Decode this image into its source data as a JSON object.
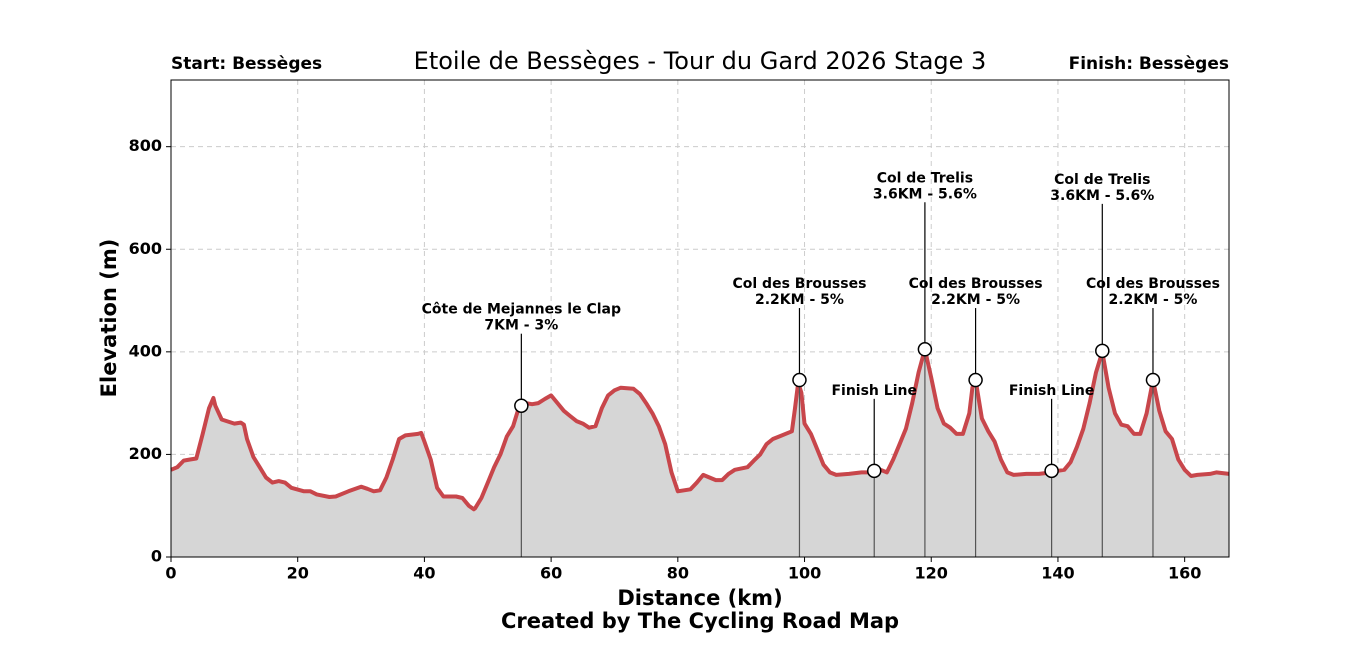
{
  "chart_data": {
    "type": "area",
    "title": "Etoile de Bessèges - Tour du Gard 2026 Stage 3",
    "start_label": "Start: Bessèges",
    "finish_label": "Finish: Bessèges",
    "xlabel": "Distance (km)",
    "ylabel": "Elevation (m)",
    "credit": "Created by The Cycling Road Map",
    "color": "#c8464b",
    "fill_color": "#d6d6d6",
    "grid": true,
    "xlim": [
      0,
      167
    ],
    "ylim": [
      0,
      930
    ],
    "xticks": [
      0,
      20,
      40,
      60,
      80,
      100,
      120,
      140,
      160
    ],
    "yticks": [
      0,
      200,
      400,
      600,
      800
    ],
    "x": [
      0,
      1,
      2,
      3,
      4,
      5,
      6,
      6.7,
      7,
      8,
      10,
      11,
      11.5,
      12,
      13,
      14,
      15,
      16,
      17,
      18,
      19,
      21,
      22,
      23,
      25,
      26,
      28,
      30,
      31,
      32,
      33,
      34,
      35,
      36,
      37,
      39,
      39.5,
      40,
      41,
      42,
      43,
      45,
      46,
      47,
      47.8,
      48,
      49,
      50,
      51,
      52,
      53,
      54,
      55,
      56,
      57,
      58,
      59,
      60,
      61,
      62,
      63,
      64,
      65,
      66,
      67,
      68,
      69,
      70,
      71,
      73,
      74,
      75,
      76,
      77,
      78,
      79,
      80,
      82,
      83,
      84,
      85,
      86,
      87,
      88,
      89,
      91,
      92,
      93,
      94,
      95,
      96,
      98,
      98.5,
      99,
      99.5,
      100,
      101,
      102,
      103,
      104,
      105,
      107,
      109,
      110,
      111,
      112,
      113,
      114,
      115,
      116,
      117,
      118,
      119,
      120,
      121,
      122,
      123,
      124,
      125,
      126,
      126.5,
      127,
      128,
      129,
      130,
      131,
      132,
      133,
      135,
      137,
      139,
      140,
      141,
      142,
      143,
      144,
      145,
      146,
      147,
      148,
      149,
      150,
      151,
      152,
      153,
      154,
      155,
      156,
      157,
      158,
      159,
      160,
      161,
      162,
      164,
      165,
      167
    ],
    "values": [
      170,
      175,
      188,
      190,
      192,
      240,
      290,
      310,
      295,
      268,
      260,
      262,
      258,
      230,
      195,
      175,
      155,
      145,
      148,
      145,
      135,
      128,
      128,
      122,
      117,
      118,
      128,
      137,
      133,
      128,
      130,
      155,
      190,
      230,
      237,
      240,
      242,
      225,
      190,
      135,
      118,
      118,
      115,
      100,
      93,
      95,
      115,
      145,
      175,
      200,
      235,
      255,
      295,
      300,
      298,
      300,
      308,
      315,
      300,
      285,
      275,
      265,
      260,
      252,
      255,
      290,
      315,
      325,
      330,
      328,
      318,
      300,
      280,
      255,
      220,
      165,
      128,
      132,
      145,
      160,
      155,
      150,
      150,
      162,
      170,
      175,
      188,
      200,
      220,
      230,
      235,
      245,
      290,
      340,
      320,
      260,
      240,
      210,
      180,
      165,
      160,
      162,
      165,
      165,
      168,
      170,
      165,
      190,
      220,
      250,
      300,
      360,
      405,
      350,
      290,
      260,
      252,
      240,
      240,
      280,
      330,
      345,
      270,
      245,
      225,
      190,
      165,
      160,
      162,
      162,
      165,
      168,
      170,
      185,
      215,
      250,
      300,
      360,
      400,
      330,
      280,
      258,
      255,
      240,
      240,
      280,
      345,
      285,
      245,
      230,
      190,
      170,
      158,
      160,
      162,
      165,
      162
    ],
    "annotations": [
      {
        "lines": [
          "Côte  de Mejannes le Clap",
          "7KM - 3%"
        ],
        "x": 55.3,
        "y": 295
      },
      {
        "lines": [
          "Col des Brousses",
          "2.2KM - 5%"
        ],
        "x": 99.2,
        "y": 345
      },
      {
        "lines": [
          "Finish Line"
        ],
        "x": 111,
        "y": 168
      },
      {
        "lines": [
          "Col de Trelis",
          "3.6KM - 5.6%"
        ],
        "x": 119,
        "y": 405
      },
      {
        "lines": [
          "Col des Brousses",
          "2.2KM - 5%"
        ],
        "x": 127,
        "y": 345
      },
      {
        "lines": [
          "Finish Line"
        ],
        "x": 139,
        "y": 168
      },
      {
        "lines": [
          "Col de Trelis",
          "3.6KM - 5.6%"
        ],
        "x": 147,
        "y": 402
      },
      {
        "lines": [
          "Col des Brousses",
          "2.2KM - 5%"
        ],
        "x": 155,
        "y": 345
      }
    ]
  }
}
